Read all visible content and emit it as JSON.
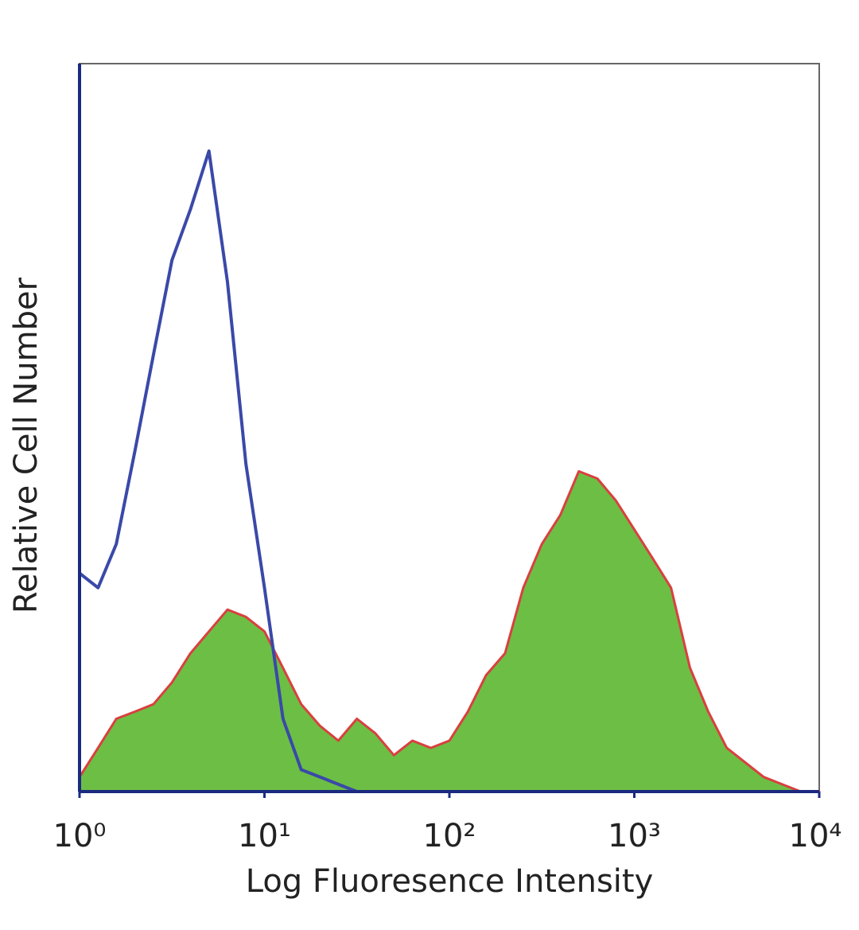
{
  "chart_data": {
    "type": "histogram-overlay",
    "xlabel": "Log Fluoresence Intensity",
    "ylabel": "Relative Cell Number",
    "xscale": "log",
    "xlim": [
      1,
      10000
    ],
    "ylim": [
      0,
      100
    ],
    "xticks": [
      {
        "value": 1,
        "label": "10⁰"
      },
      {
        "value": 10,
        "label": "10¹"
      },
      {
        "value": 100,
        "label": "10²"
      },
      {
        "value": 1000,
        "label": "10³"
      },
      {
        "value": 10000,
        "label": "10⁴"
      }
    ],
    "x": [
      1,
      1.26,
      1.58,
      2,
      2.51,
      3.16,
      3.98,
      5.01,
      6.31,
      7.94,
      10,
      12.6,
      15.8,
      20,
      25.1,
      31.6,
      39.8,
      50.1,
      63.1,
      79.4,
      100,
      126,
      158,
      200,
      251,
      316,
      398,
      501,
      631,
      794,
      1000,
      1260,
      1580,
      2000,
      2510,
      3160,
      3980,
      5010,
      6310,
      7940,
      10000
    ],
    "series": [
      {
        "color": "#6cbf44",
        "edge_color": "#d94040",
        "filled": true,
        "values": [
          2,
          6,
          10,
          11,
          12,
          15,
          19,
          22,
          25,
          24,
          22,
          17,
          12,
          9,
          7,
          10,
          8,
          5,
          7,
          6,
          7,
          11,
          16,
          19,
          28,
          34,
          38,
          44,
          43,
          40,
          36,
          32,
          28,
          17,
          11,
          6,
          4,
          2,
          1,
          0,
          0
        ]
      },
      {
        "color": "#3a49a8",
        "filled": false,
        "values": [
          30,
          28,
          34,
          47,
          60,
          73,
          80,
          88,
          70,
          45,
          28,
          10,
          3,
          2,
          1,
          0,
          0,
          0,
          0,
          0,
          0,
          0,
          0,
          0,
          0,
          0,
          0,
          0,
          0,
          0,
          0,
          0,
          0,
          0,
          0,
          0,
          0,
          0,
          0,
          0,
          0
        ]
      }
    ]
  }
}
